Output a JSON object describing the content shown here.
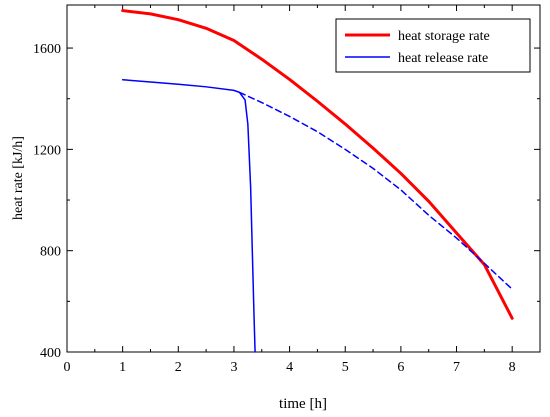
{
  "chart_data": {
    "type": "line",
    "xlabel": "time [h]",
    "ylabel": "heat rate [kJ/h]",
    "xlim": [
      0,
      8.5
    ],
    "ylim": [
      400,
      1770
    ],
    "xticks": [
      0,
      1,
      2,
      3,
      4,
      5,
      6,
      7,
      8
    ],
    "yticks": [
      400,
      800,
      1200,
      1600
    ],
    "grid": false,
    "legend_position": "top-right",
    "series": [
      {
        "name": "heat storage rate",
        "color": "#ff0000",
        "style": "solid-thick",
        "x": [
          1.0,
          1.5,
          2.0,
          2.5,
          3.0,
          3.5,
          4.0,
          4.5,
          5.0,
          5.5,
          6.0,
          6.5,
          7.0,
          7.5,
          8.0
        ],
        "y": [
          1748,
          1735,
          1712,
          1678,
          1630,
          1556,
          1476,
          1390,
          1300,
          1205,
          1105,
          995,
          870,
          745,
          533
        ]
      },
      {
        "name": "heat release rate",
        "color": "#0000ff",
        "style": "solid",
        "x": [
          1.0,
          1.5,
          2.0,
          2.5,
          3.0,
          3.1,
          3.2,
          3.25,
          3.3,
          3.33,
          3.36,
          3.38
        ],
        "y": [
          1475,
          1466,
          1457,
          1447,
          1433,
          1425,
          1395,
          1300,
          1050,
          800,
          550,
          400
        ]
      },
      {
        "name": "",
        "color": "#0000ff",
        "style": "dashed",
        "x": [
          3.1,
          3.5,
          4.0,
          4.5,
          5.0,
          5.5,
          6.0,
          6.5,
          7.0,
          7.5,
          8.0
        ],
        "y": [
          1425,
          1385,
          1330,
          1270,
          1200,
          1125,
          1040,
          940,
          850,
          750,
          648
        ]
      }
    ]
  }
}
